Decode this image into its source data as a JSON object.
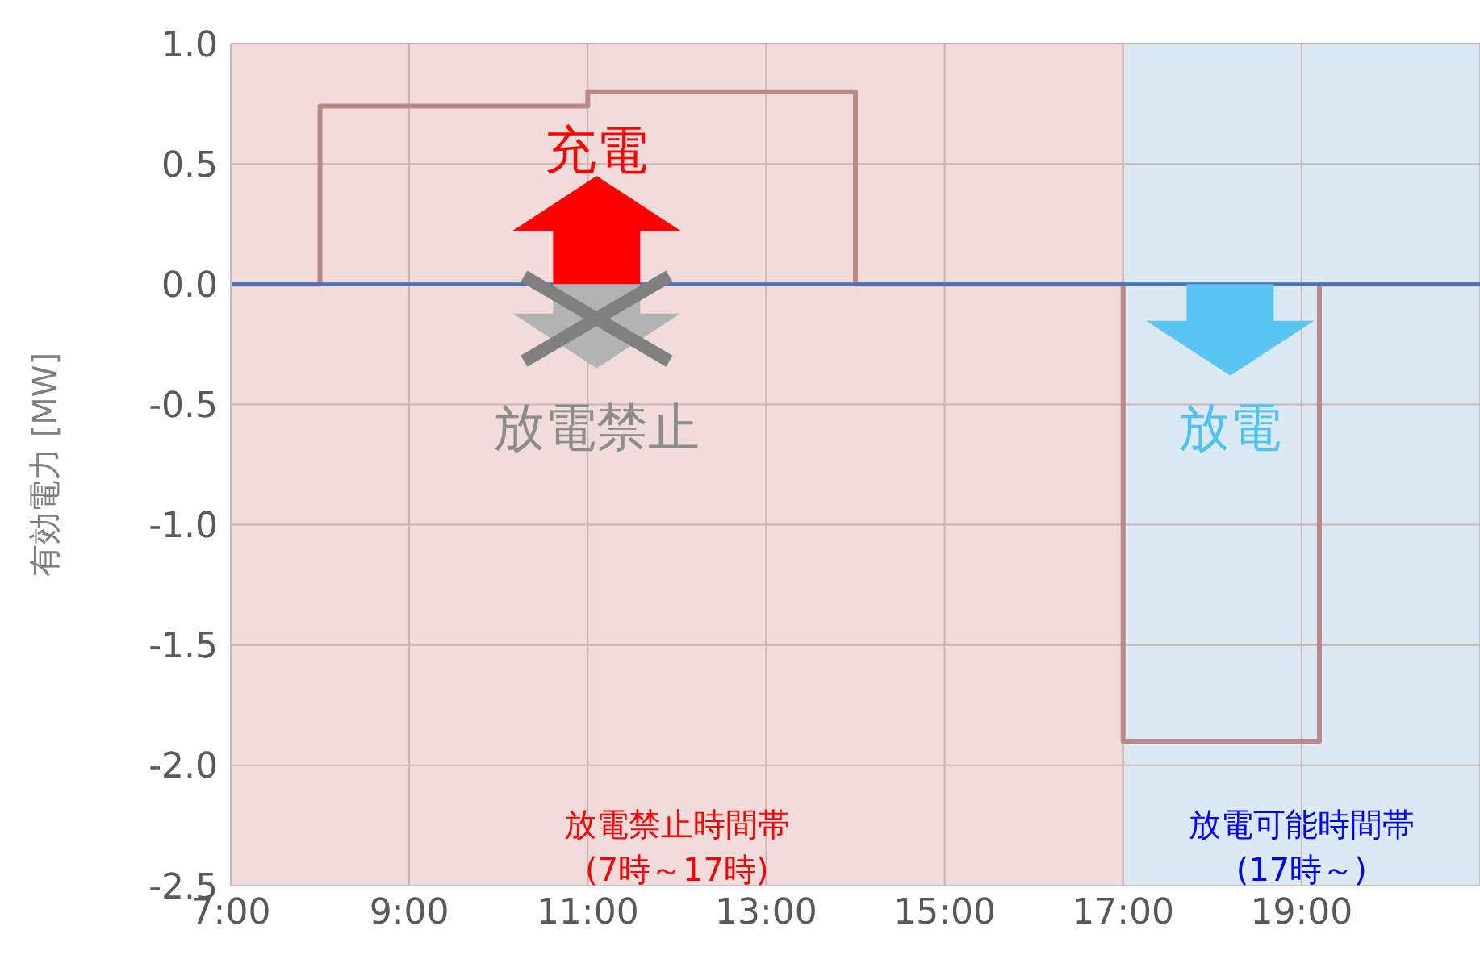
{
  "chart_data": {
    "type": "step",
    "ylabel": "有効電力 [MW]",
    "x": [
      7,
      8,
      11,
      14,
      17,
      19.2,
      21
    ],
    "series": [
      {
        "color": "#b98a8a",
        "values": [
          0,
          0.74,
          0.8,
          0,
          -1.9,
          0,
          0
        ]
      }
    ],
    "xlim": [
      7,
      21
    ],
    "xticks": [
      {
        "value": 7,
        "label": "7:00"
      },
      {
        "value": 9,
        "label": "9:00"
      },
      {
        "value": 11,
        "label": "11:00"
      },
      {
        "value": 13,
        "label": "13:00"
      },
      {
        "value": 15,
        "label": "15:00"
      },
      {
        "value": 17,
        "label": "17:00"
      },
      {
        "value": 19,
        "label": "19:00"
      }
    ],
    "ylim": [
      -2.5,
      1
    ],
    "yticks": [
      {
        "value": -2.5,
        "label": "-2.5"
      },
      {
        "value": -2,
        "label": "-2.0"
      },
      {
        "value": -1.5,
        "label": "-1.5"
      },
      {
        "value": -1,
        "label": "-1.0"
      },
      {
        "value": -0.5,
        "label": "-0.5"
      },
      {
        "value": 0,
        "label": "0.0"
      },
      {
        "value": 0.5,
        "label": "0.5"
      },
      {
        "value": 1,
        "label": "1.0"
      }
    ],
    "grid": true,
    "ref_lines": [
      {
        "axis": "y",
        "value": 0,
        "color": "#4472c4"
      }
    ],
    "bands": [
      {
        "axis": "x",
        "from": 7,
        "to": 17,
        "label": "放電禁止時間帯\n(7時～17時)",
        "color": "#f2dcdb"
      },
      {
        "axis": "x",
        "from": 17,
        "to": 21,
        "label": "放電可能時間帯\n(17時～)",
        "color": "#dbe9f3"
      }
    ],
    "annotations": [
      "充電",
      "放電禁止",
      "放電"
    ]
  }
}
